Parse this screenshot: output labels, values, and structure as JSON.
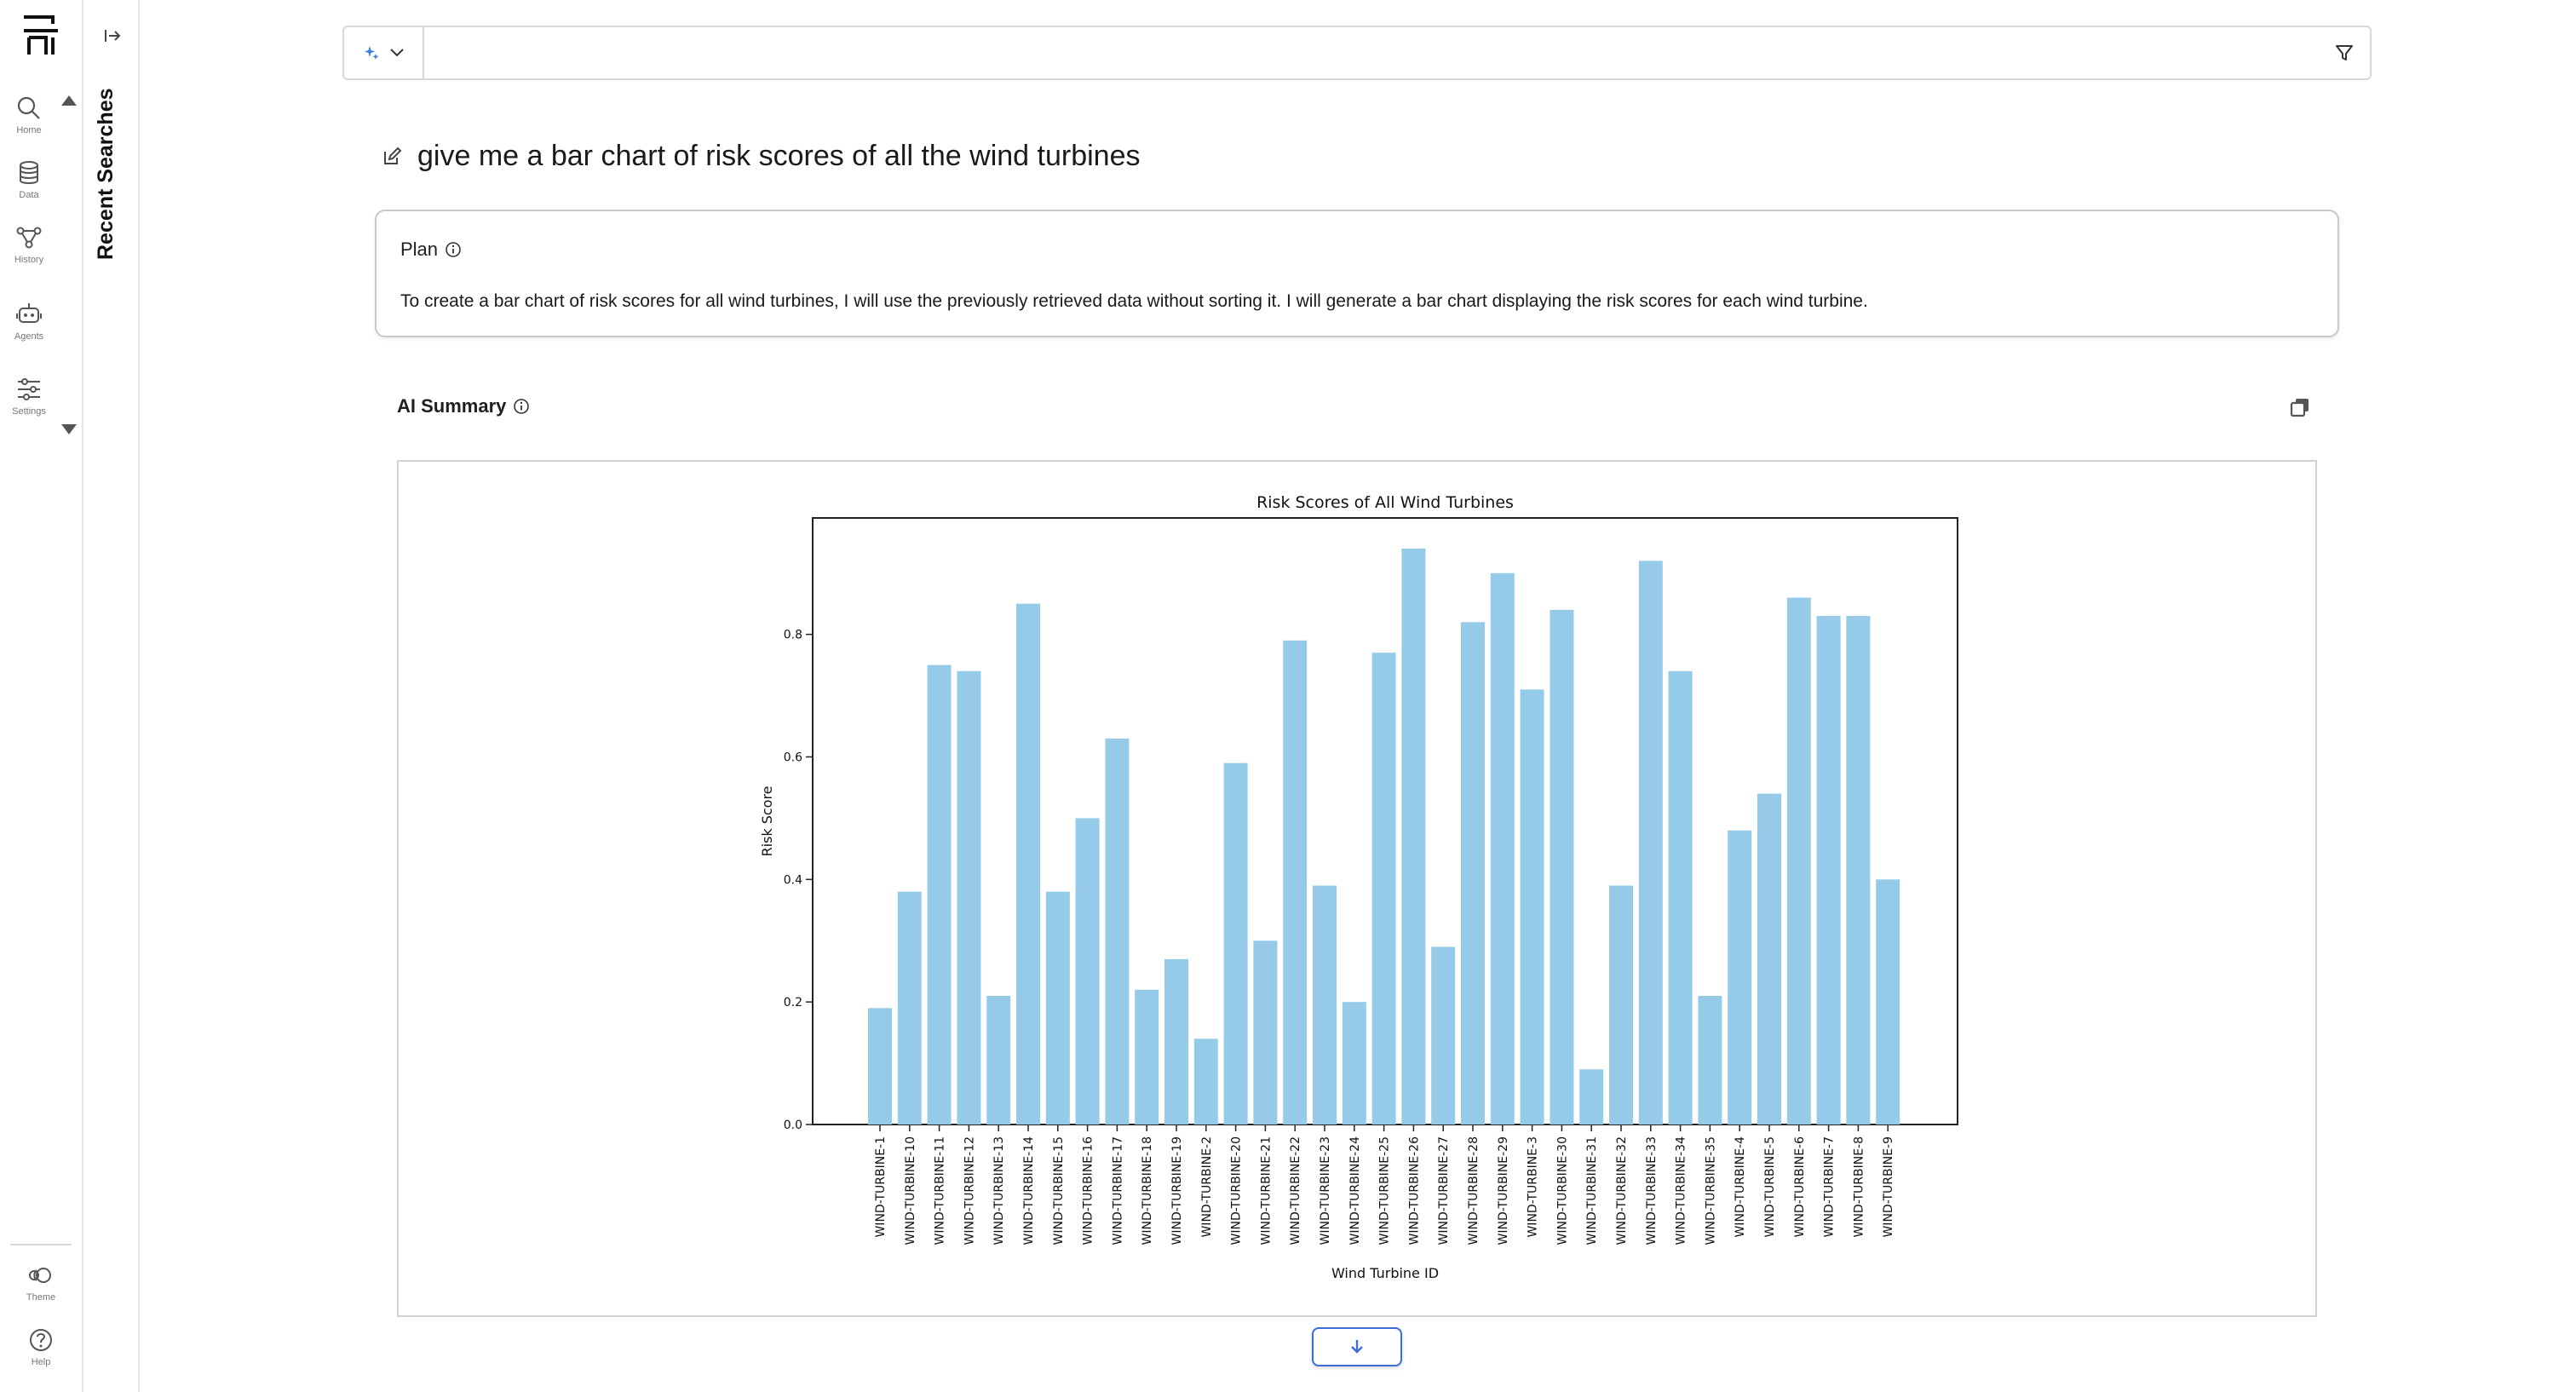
{
  "app": {
    "logo_icon": "ai-logo-icon"
  },
  "rail": {
    "items": [
      {
        "label": "Home",
        "icon": "search-icon"
      },
      {
        "label": "Data",
        "icon": "database-icon"
      },
      {
        "label": "History",
        "icon": "workflow-icon"
      },
      {
        "label": "Agents",
        "icon": "robot-icon"
      },
      {
        "label": "Settings",
        "icon": "sliders-icon"
      }
    ],
    "bottom": [
      {
        "label": "Theme",
        "icon": "theme-icon"
      },
      {
        "label": "Help",
        "icon": "help-icon"
      }
    ]
  },
  "recent": {
    "title": "Recent Searches"
  },
  "search": {
    "value": "",
    "placeholder": ""
  },
  "query": {
    "text": "give me a bar chart of risk scores of all the wind turbines"
  },
  "plan": {
    "label": "Plan",
    "text": "To create a bar chart of risk scores for all wind turbines, I will use the previously retrieved data without sorting it. I will generate a bar chart displaying the risk scores for each wind turbine."
  },
  "summary": {
    "label": "AI Summary"
  },
  "colors": {
    "bar": "#95cbe8",
    "accent": "#3a6fd8"
  },
  "chart_data": {
    "type": "bar",
    "title": "Risk Scores of All Wind Turbines",
    "xlabel": "Wind Turbine ID",
    "ylabel": "Risk Score",
    "ylim": [
      0,
      0.99
    ],
    "yticks": [
      "0.0",
      "0.2",
      "0.4",
      "0.6",
      "0.8"
    ],
    "grid": false,
    "categories": [
      "WIND-TURBINE-1",
      "WIND-TURBINE-10",
      "WIND-TURBINE-11",
      "WIND-TURBINE-12",
      "WIND-TURBINE-13",
      "WIND-TURBINE-14",
      "WIND-TURBINE-15",
      "WIND-TURBINE-16",
      "WIND-TURBINE-17",
      "WIND-TURBINE-18",
      "WIND-TURBINE-19",
      "WIND-TURBINE-2",
      "WIND-TURBINE-20",
      "WIND-TURBINE-21",
      "WIND-TURBINE-22",
      "WIND-TURBINE-23",
      "WIND-TURBINE-24",
      "WIND-TURBINE-25",
      "WIND-TURBINE-26",
      "WIND-TURBINE-27",
      "WIND-TURBINE-28",
      "WIND-TURBINE-29",
      "WIND-TURBINE-3",
      "WIND-TURBINE-30",
      "WIND-TURBINE-31",
      "WIND-TURBINE-32",
      "WIND-TURBINE-33",
      "WIND-TURBINE-34",
      "WIND-TURBINE-35",
      "WIND-TURBINE-4",
      "WIND-TURBINE-5",
      "WIND-TURBINE-6",
      "WIND-TURBINE-7",
      "WIND-TURBINE-8",
      "WIND-TURBINE-9"
    ],
    "values": [
      0.19,
      0.38,
      0.75,
      0.74,
      0.21,
      0.85,
      0.38,
      0.5,
      0.63,
      0.22,
      0.27,
      0.14,
      0.59,
      0.3,
      0.79,
      0.39,
      0.2,
      0.77,
      0.94,
      0.29,
      0.82,
      0.9,
      0.71,
      0.84,
      0.09,
      0.39,
      0.92,
      0.74,
      0.21,
      0.48,
      0.54,
      0.86,
      0.83,
      0.83,
      0.4
    ]
  }
}
